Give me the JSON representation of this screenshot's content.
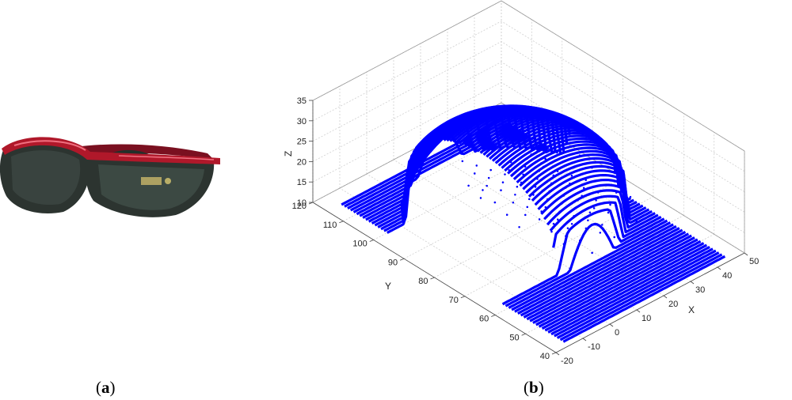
{
  "panels": {
    "a_label": "a",
    "b_label": "b"
  },
  "photo": {
    "subject": "sunglasses-icon",
    "frame_color": "#b0182a",
    "lens_color": "#2c3430"
  },
  "chart_data": {
    "type": "scatter",
    "projection": "3d",
    "title": "",
    "xlabel": "X",
    "ylabel": "Y",
    "zlabel": "Z",
    "xlim": [
      -20,
      50
    ],
    "ylim": [
      40,
      120
    ],
    "zlim": [
      10,
      35
    ],
    "x_ticks": [
      -20,
      -10,
      0,
      10,
      20,
      30,
      40,
      50
    ],
    "y_ticks": [
      40,
      50,
      60,
      70,
      80,
      90,
      100,
      110,
      120
    ],
    "z_ticks": [
      10,
      15,
      20,
      25,
      30,
      35
    ],
    "grid": true,
    "marker_color": "#0000ff",
    "series": [
      {
        "name": "",
        "surface": "lens point cloud",
        "points_approx": {
          "x_range": [
            -15,
            45
          ],
          "y_range": [
            42,
            115
          ],
          "z_base": 10,
          "z_peak": 30
        }
      }
    ]
  }
}
